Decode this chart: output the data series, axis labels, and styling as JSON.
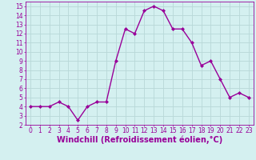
{
  "x": [
    0,
    1,
    2,
    3,
    4,
    5,
    6,
    7,
    8,
    9,
    10,
    11,
    12,
    13,
    14,
    15,
    16,
    17,
    18,
    19,
    20,
    21,
    22,
    23
  ],
  "y": [
    4.0,
    4.0,
    4.0,
    4.5,
    4.0,
    2.5,
    4.0,
    4.5,
    4.5,
    9.0,
    12.5,
    12.0,
    14.5,
    15.0,
    14.5,
    12.5,
    12.5,
    11.0,
    8.5,
    9.0,
    7.0,
    5.0,
    5.5,
    5.0
  ],
  "line_color": "#990099",
  "marker": "D",
  "marker_size": 2.0,
  "bg_color": "#d4f0f0",
  "grid_color": "#b8d8d8",
  "xlabel": "Windchill (Refroidissement éolien,°C)",
  "ylabel": "",
  "xlim": [
    -0.5,
    23.5
  ],
  "ylim": [
    2,
    15.5
  ],
  "yticks": [
    2,
    3,
    4,
    5,
    6,
    7,
    8,
    9,
    10,
    11,
    12,
    13,
    14,
    15
  ],
  "xticks": [
    0,
    1,
    2,
    3,
    4,
    5,
    6,
    7,
    8,
    9,
    10,
    11,
    12,
    13,
    14,
    15,
    16,
    17,
    18,
    19,
    20,
    21,
    22,
    23
  ],
  "tick_color": "#990099",
  "tick_fontsize": 5.5,
  "xlabel_fontsize": 7.0,
  "spine_color": "#990099",
  "line_width": 1.0
}
